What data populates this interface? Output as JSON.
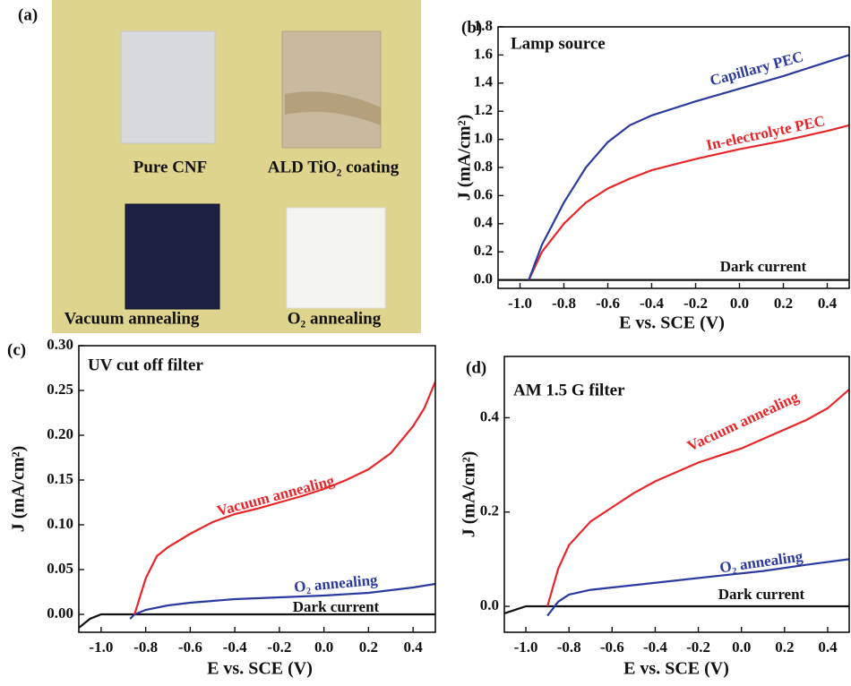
{
  "photo_panel": {
    "panel_label": "(a)",
    "captions": [
      "Pure CNF",
      "ALD TiO₂ coating",
      "Vacuum annealing",
      "O₂ annealing"
    ]
  },
  "chart_data": [
    {
      "type": "line",
      "panel_label": "(b)",
      "x_label": "E vs. SCE (V)",
      "y_label": "J (mA/cm²)",
      "annotations": [
        "Lamp source",
        "Capillary PEC",
        "In-electrolyte PEC",
        "Dark current"
      ],
      "xlim": [
        -1.1,
        0.5
      ],
      "ylim": [
        -0.06,
        1.8
      ],
      "xticks": [
        {
          "value": -1.0,
          "label": "-1.0"
        },
        -0.8,
        -0.6,
        -0.4,
        -0.2,
        {
          "value": 0.0,
          "label": "0.0"
        },
        0.2,
        0.4
      ],
      "yticks": [
        {
          "value": 0.0,
          "label": "0.0"
        },
        0.2,
        0.4,
        0.6,
        0.8,
        {
          "value": 1.0,
          "label": "1.0"
        },
        1.2,
        1.4,
        1.6,
        1.8
      ],
      "series": [
        {
          "name": "Dark current",
          "color": "#111111",
          "x": [
            -1.1,
            0.5
          ],
          "values": [
            0,
            0
          ]
        },
        {
          "name": "In-electrolyte PEC",
          "color": "#e8262a",
          "x": [
            -0.96,
            -0.9,
            -0.8,
            -0.7,
            -0.6,
            -0.5,
            -0.4,
            -0.2,
            0,
            0.2,
            0.4,
            0.5
          ],
          "values": [
            0,
            0.2,
            0.4,
            0.55,
            0.65,
            0.72,
            0.78,
            0.86,
            0.93,
            0.99,
            1.06,
            1.1
          ]
        },
        {
          "name": "Capillary PEC",
          "color": "#2b3a9e",
          "x": [
            -0.96,
            -0.9,
            -0.8,
            -0.7,
            -0.6,
            -0.5,
            -0.4,
            -0.2,
            0,
            0.2,
            0.4,
            0.5
          ],
          "values": [
            0,
            0.25,
            0.55,
            0.8,
            0.98,
            1.1,
            1.17,
            1.27,
            1.36,
            1.45,
            1.55,
            1.6
          ]
        }
      ]
    },
    {
      "type": "line",
      "panel_label": "(c)",
      "x_label": "E vs. SCE (V)",
      "y_label": "J (mA/cm²)",
      "annotations": [
        "UV cut off filter",
        "Vacuum annealing",
        "O₂ annealing",
        "Dark current"
      ],
      "xlim": [
        -1.1,
        0.5
      ],
      "ylim": [
        -0.02,
        0.3
      ],
      "xticks": [
        {
          "value": -1.0,
          "label": "-1.0"
        },
        -0.8,
        -0.6,
        -0.4,
        -0.2,
        {
          "value": 0.0,
          "label": "0.0"
        },
        0.2,
        0.4
      ],
      "yticks": [
        {
          "value": 0.0,
          "label": "0.00"
        },
        0.05,
        {
          "value": 0.1,
          "label": "0.10"
        },
        0.15,
        {
          "value": 0.2,
          "label": "0.20"
        },
        0.25,
        {
          "value": 0.3,
          "label": "0.30"
        }
      ],
      "series": [
        {
          "name": "Dark current",
          "color": "#111111",
          "x": [
            -1.1,
            -1.05,
            -1.0,
            0.5
          ],
          "values": [
            -0.015,
            -0.005,
            0,
            0
          ]
        },
        {
          "name": "O₂ annealing",
          "color": "#2b3a9e",
          "x": [
            -0.87,
            -0.85,
            -0.8,
            -0.7,
            -0.6,
            -0.5,
            -0.4,
            -0.2,
            0,
            0.2,
            0.4,
            0.5
          ],
          "values": [
            -0.005,
            0,
            0.005,
            0.01,
            0.013,
            0.015,
            0.017,
            0.019,
            0.021,
            0.024,
            0.03,
            0.034
          ]
        },
        {
          "name": "Vacuum annealing",
          "color": "#e8262a",
          "x": [
            -0.85,
            -0.8,
            -0.75,
            -0.7,
            -0.6,
            -0.5,
            -0.4,
            -0.3,
            -0.2,
            -0.1,
            0,
            0.1,
            0.2,
            0.3,
            0.4,
            0.45,
            0.5
          ],
          "values": [
            0,
            0.04,
            0.065,
            0.075,
            0.09,
            0.103,
            0.112,
            0.118,
            0.125,
            0.132,
            0.14,
            0.15,
            0.162,
            0.18,
            0.21,
            0.23,
            0.26
          ]
        }
      ]
    },
    {
      "type": "line",
      "panel_label": "(d)",
      "x_label": "E vs. SCE (V)",
      "y_label": "J (mA/cm²)",
      "annotations": [
        "AM 1.5 G filter",
        "Vacuum annealing",
        "O₂ annealing",
        "Dark current"
      ],
      "xlim": [
        -1.1,
        0.5
      ],
      "ylim": [
        -0.055,
        0.53
      ],
      "xticks": [
        {
          "value": -1.0,
          "label": "-1.0"
        },
        -0.8,
        -0.6,
        -0.4,
        -0.2,
        {
          "value": 0.0,
          "label": "0.0"
        },
        0.2,
        0.4
      ],
      "yticks": [
        {
          "value": 0.0,
          "label": "0.0"
        },
        0.2,
        0.4
      ],
      "series": [
        {
          "name": "Dark current",
          "color": "#111111",
          "x": [
            -1.1,
            -1.0,
            0.5
          ],
          "values": [
            -0.015,
            0,
            0
          ]
        },
        {
          "name": "O₂ annealing",
          "color": "#2b3a9e",
          "x": [
            -0.9,
            -0.85,
            -0.8,
            -0.7,
            -0.5,
            -0.3,
            -0.1,
            0.1,
            0.3,
            0.5
          ],
          "values": [
            -0.02,
            0.01,
            0.025,
            0.035,
            0.045,
            0.055,
            0.065,
            0.075,
            0.088,
            0.1
          ]
        },
        {
          "name": "Vacuum annealing",
          "color": "#e8262a",
          "x": [
            -0.9,
            -0.85,
            -0.8,
            -0.7,
            -0.6,
            -0.5,
            -0.4,
            -0.3,
            -0.2,
            -0.1,
            0,
            0.1,
            0.2,
            0.3,
            0.4,
            0.5
          ],
          "values": [
            0,
            0.08,
            0.13,
            0.18,
            0.21,
            0.24,
            0.265,
            0.285,
            0.305,
            0.32,
            0.335,
            0.355,
            0.375,
            0.395,
            0.42,
            0.46
          ]
        }
      ]
    }
  ]
}
